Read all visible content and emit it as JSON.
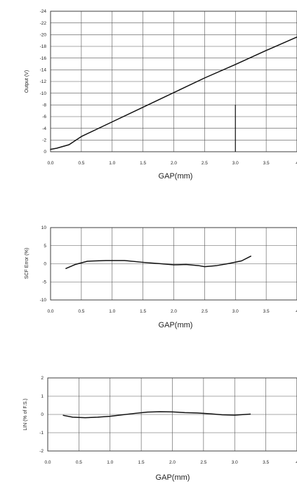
{
  "chart_data": [
    {
      "type": "line",
      "title": "",
      "xlabel": "GAP(mm)",
      "ylabel": "Output (V)",
      "xlim": [
        0,
        4.0
      ],
      "ylim": [
        0,
        -24
      ],
      "x_ticks": [
        "0.0",
        "0.5",
        "1.0",
        "1.5",
        "2.0",
        "2.5",
        "3.0",
        "3.5",
        "4"
      ],
      "y_ticks": [
        "0",
        "-2",
        "-4",
        "-6",
        "-8",
        "-10",
        "-12",
        "-14",
        "-16",
        "-18",
        "-20",
        "-22",
        "-24"
      ],
      "y_tick_values": [
        0,
        -2,
        -4,
        -6,
        -8,
        -10,
        -12,
        -14,
        -16,
        -18,
        -20,
        -22,
        -24
      ],
      "grid": true,
      "series": [
        {
          "x": [
            0,
            0.1,
            0.2,
            0.3,
            0.5,
            1.0,
            1.5,
            2.0,
            2.5,
            3.0,
            3.5,
            4.0
          ],
          "values": [
            -0.4,
            -0.6,
            -0.9,
            -1.2,
            -2.6,
            -5.1,
            -7.6,
            -10.1,
            -12.6,
            -14.9,
            -17.3,
            -19.6
          ]
        }
      ],
      "marker_line": {
        "x": 3.0,
        "y_from": 0,
        "y_to": -8
      }
    },
    {
      "type": "line",
      "title": "",
      "xlabel": "GAP(mm)",
      "ylabel": "SCF Error (%)",
      "xlim": [
        0,
        4.0
      ],
      "ylim": [
        -10,
        10
      ],
      "x_ticks": [
        "0.0",
        "0.5",
        "1.0",
        "1.5",
        "2.0",
        "2.5",
        "3.0",
        "3.5",
        "4"
      ],
      "y_ticks": [
        "10",
        "5",
        "0",
        "-5",
        "-10"
      ],
      "y_tick_values": [
        10,
        5,
        0,
        -5,
        -10
      ],
      "grid": true,
      "series": [
        {
          "x": [
            0.25,
            0.4,
            0.6,
            0.9,
            1.2,
            1.5,
            1.8,
            2.0,
            2.2,
            2.4,
            2.5,
            2.7,
            2.9,
            3.1,
            3.25
          ],
          "values": [
            -1.3,
            -0.2,
            0.7,
            0.9,
            0.9,
            0.4,
            0,
            -0.3,
            -0.2,
            -0.5,
            -0.8,
            -0.5,
            0.1,
            0.8,
            2.1
          ]
        }
      ]
    },
    {
      "type": "line",
      "title": "",
      "xlabel": "GAP(mm)",
      "ylabel": "LIN (% of F.S.)",
      "xlim": [
        0,
        4.0
      ],
      "ylim": [
        -2,
        2
      ],
      "x_ticks": [
        "0.0",
        "0.5",
        "1.0",
        "1.5",
        "2.0",
        "2.5",
        "3.0",
        "3.5",
        "4"
      ],
      "y_ticks": [
        "2",
        "1",
        "0",
        "-1",
        "-2"
      ],
      "y_tick_values": [
        2,
        1,
        0,
        -1,
        -2
      ],
      "grid": true,
      "series": [
        {
          "x": [
            0.25,
            0.4,
            0.6,
            0.8,
            1.0,
            1.2,
            1.4,
            1.6,
            1.8,
            2.0,
            2.2,
            2.4,
            2.6,
            2.8,
            3.0,
            3.25
          ],
          "values": [
            -0.05,
            -0.15,
            -0.18,
            -0.15,
            -0.1,
            -0.02,
            0.06,
            0.13,
            0.15,
            0.14,
            0.1,
            0.08,
            0.04,
            -0.02,
            -0.04,
            0.02
          ]
        }
      ]
    }
  ]
}
